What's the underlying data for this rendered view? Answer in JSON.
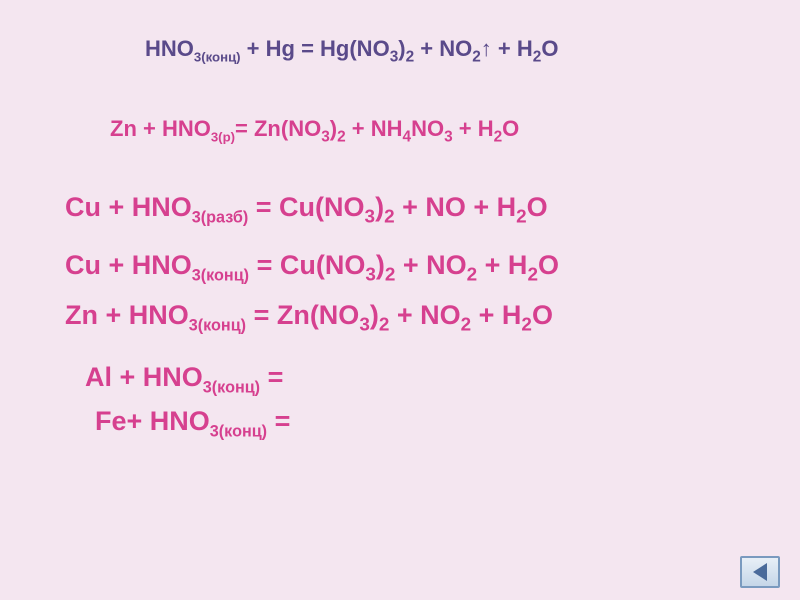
{
  "background_color": "#f4e6f0",
  "colors": {
    "purple_dark": "#5a4a8a",
    "magenta": "#d6408f",
    "nav_border": "#7a9abf",
    "nav_arrow": "#4a6a9a"
  },
  "equations": {
    "eq1": {
      "parts": {
        "p1": "HNO",
        "s1": "3(конц)",
        "p2": " + Hg = Hg(NO",
        "s2": "3",
        "p3": ")",
        "s3": "2",
        "p4": " + NO",
        "s4": "2",
        "p5": "↑ + H",
        "s5": "2",
        "p6": "O"
      },
      "color": "#5a4a8a",
      "fontsize": 22
    },
    "eq2": {
      "parts": {
        "p1": "Zn + HNO",
        "s1": "3(р)",
        "p2": "= Zn(NO",
        "s2": "3",
        "p3": ")",
        "s3": "2",
        "p4": " + NH",
        "s4": "4",
        "p5": "NO",
        "s5": "3",
        "p6": " + H",
        "s6": "2",
        "p7": "O"
      },
      "color": "#d6408f",
      "fontsize": 22
    },
    "eq3": {
      "parts": {
        "p1": "Cu + HNO",
        "s1": "3(разб)",
        "p2": " = Cu(NO",
        "s2": "3",
        "p3": ")",
        "s3": "2",
        "p4": " + NO + H",
        "s4": "2",
        "p5": "O"
      },
      "color": "#d6408f",
      "fontsize": 27
    },
    "eq4": {
      "parts": {
        "p1": "Cu + HNO",
        "s1": "3(конц)",
        "p2": " = Cu(NO",
        "s2": "3",
        "p3": ")",
        "s3": "2",
        "p4": " + NO",
        "s4": "2",
        "p5": " + H",
        "s5": "2",
        "p6": "O"
      },
      "color": "#d6408f",
      "fontsize": 27
    },
    "eq5": {
      "parts": {
        "p1": "Zn + HNO",
        "s1": "3(конц)",
        "p2": " = Zn(NO",
        "s2": "3",
        "p3": ")",
        "s3": "2",
        "p4": " + NO",
        "s4": "2",
        "p5": " + H",
        "s5": "2",
        "p6": "O"
      },
      "color": "#d6408f",
      "fontsize": 27
    },
    "eq6": {
      "parts": {
        "p1": "Al + HNO",
        "s1": "3(конц)",
        "p2": " ="
      },
      "color": "#d6408f",
      "fontsize": 27
    },
    "eq7": {
      "parts": {
        "p1": "Fe+ HNO",
        "s1": "3(конц)",
        "p2": " ="
      },
      "color": "#d6408f",
      "fontsize": 27
    }
  },
  "nav": {
    "icon_name": "back-arrow"
  }
}
